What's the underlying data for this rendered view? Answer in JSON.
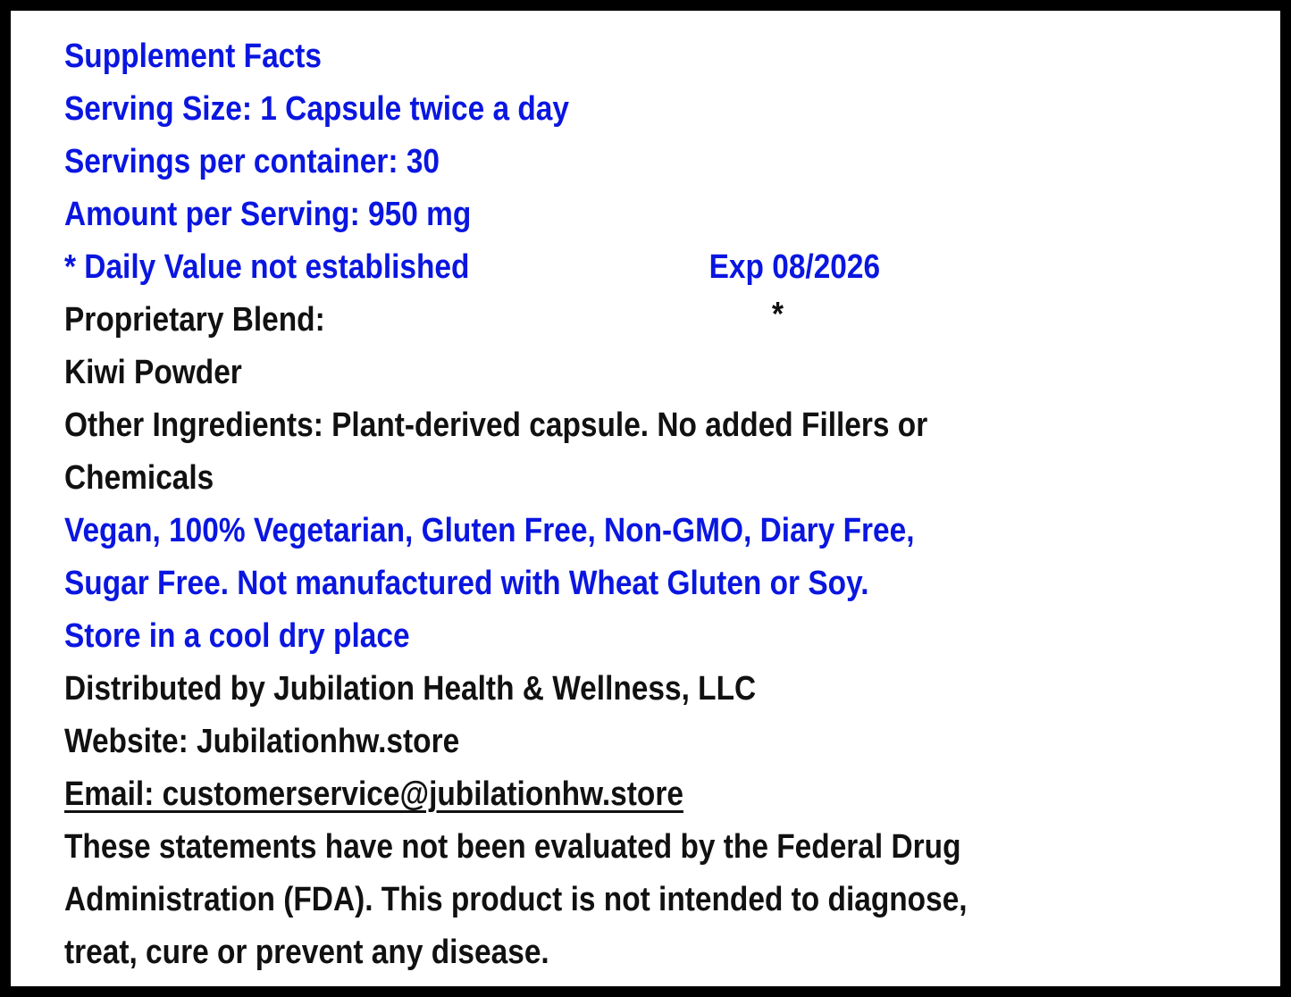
{
  "title": "Supplement Facts",
  "serving_size": "Serving Size: 1 Capsule twice a day",
  "servings_per_container": "Servings per container: 30",
  "amount_per_serving": "Amount per Serving: 950 mg",
  "daily_value_note": "* Daily Value not established",
  "expiration": "Exp 08/2026",
  "blend_label": "Proprietary Blend:",
  "blend_asterisk": "*",
  "ingredient": "Kiwi Powder",
  "other_ingredients": [
    "Other Ingredients: Plant-derived capsule.  No added Fillers or",
    "Chemicals"
  ],
  "dietary_claims": [
    "Vegan, 100% Vegetarian, Gluten Free, Non-GMO, Diary Free,",
    "Sugar Free. Not manufactured with Wheat Gluten or Soy."
  ],
  "storage": "Store in a cool dry place",
  "distributor": "Distributed by Jubilation Health & Wellness, LLC",
  "website": "Website: Jubilationhw.store",
  "email": "Email: customerservice@jubilationhw.store",
  "disclaimer": [
    "These statements have not been evaluated by the Federal Drug",
    "Administration (FDA). This product is not intended to diagnose,",
    "treat, cure or prevent any disease."
  ],
  "colors": {
    "blue_text": "#0a16e0",
    "black_text": "#111111",
    "border": "#000000"
  }
}
